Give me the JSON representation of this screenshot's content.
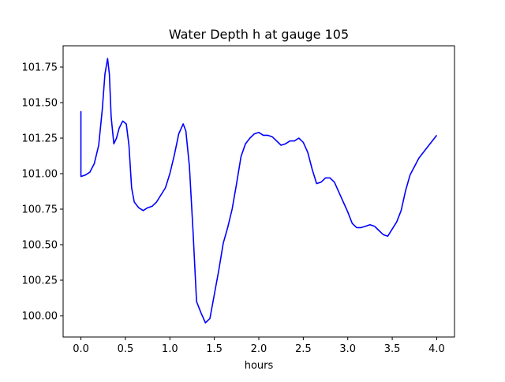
{
  "chart_data": {
    "type": "line",
    "title": "Water Depth h at gauge 105",
    "xlabel": "hours",
    "ylabel": "",
    "xlim": [
      -0.2,
      4.2
    ],
    "ylim": [
      99.85,
      101.9
    ],
    "xticks": [
      0.0,
      0.5,
      1.0,
      1.5,
      2.0,
      2.5,
      3.0,
      3.5,
      4.0
    ],
    "xtick_labels": [
      "0.0",
      "0.5",
      "1.0",
      "1.5",
      "2.0",
      "2.5",
      "3.0",
      "3.5",
      "4.0"
    ],
    "yticks": [
      100.0,
      100.25,
      100.5,
      100.75,
      101.0,
      101.25,
      101.5,
      101.75
    ],
    "ytick_labels": [
      "100.00",
      "100.25",
      "100.50",
      "100.75",
      "101.00",
      "101.25",
      "101.50",
      "101.75"
    ],
    "grid": false,
    "legend": "none",
    "series": [
      {
        "color": "#0000ff",
        "points": [
          [
            0.0,
            101.44
          ],
          [
            0.0,
            100.98
          ],
          [
            0.05,
            100.99
          ],
          [
            0.1,
            101.01
          ],
          [
            0.15,
            101.07
          ],
          [
            0.2,
            101.2
          ],
          [
            0.24,
            101.45
          ],
          [
            0.27,
            101.7
          ],
          [
            0.3,
            101.81
          ],
          [
            0.32,
            101.7
          ],
          [
            0.34,
            101.4
          ],
          [
            0.37,
            101.21
          ],
          [
            0.4,
            101.25
          ],
          [
            0.43,
            101.32
          ],
          [
            0.47,
            101.37
          ],
          [
            0.51,
            101.35
          ],
          [
            0.54,
            101.2
          ],
          [
            0.57,
            100.9
          ],
          [
            0.6,
            100.8
          ],
          [
            0.65,
            100.76
          ],
          [
            0.7,
            100.74
          ],
          [
            0.75,
            100.76
          ],
          [
            0.8,
            100.77
          ],
          [
            0.85,
            100.8
          ],
          [
            0.9,
            100.85
          ],
          [
            0.95,
            100.9
          ],
          [
            1.0,
            101.0
          ],
          [
            1.05,
            101.13
          ],
          [
            1.1,
            101.28
          ],
          [
            1.15,
            101.35
          ],
          [
            1.18,
            101.3
          ],
          [
            1.22,
            101.05
          ],
          [
            1.26,
            100.6
          ],
          [
            1.3,
            100.1
          ],
          [
            1.35,
            100.02
          ],
          [
            1.4,
            99.95
          ],
          [
            1.45,
            99.98
          ],
          [
            1.5,
            100.15
          ],
          [
            1.55,
            100.32
          ],
          [
            1.6,
            100.51
          ],
          [
            1.65,
            100.62
          ],
          [
            1.7,
            100.75
          ],
          [
            1.75,
            100.93
          ],
          [
            1.8,
            101.12
          ],
          [
            1.85,
            101.21
          ],
          [
            1.9,
            101.25
          ],
          [
            1.95,
            101.28
          ],
          [
            2.0,
            101.29
          ],
          [
            2.05,
            101.27
          ],
          [
            2.1,
            101.27
          ],
          [
            2.15,
            101.26
          ],
          [
            2.2,
            101.23
          ],
          [
            2.25,
            101.2
          ],
          [
            2.3,
            101.21
          ],
          [
            2.35,
            101.23
          ],
          [
            2.4,
            101.23
          ],
          [
            2.45,
            101.25
          ],
          [
            2.5,
            101.22
          ],
          [
            2.55,
            101.15
          ],
          [
            2.6,
            101.03
          ],
          [
            2.65,
            100.93
          ],
          [
            2.7,
            100.94
          ],
          [
            2.75,
            100.97
          ],
          [
            2.8,
            100.97
          ],
          [
            2.85,
            100.94
          ],
          [
            2.9,
            100.87
          ],
          [
            2.95,
            100.8
          ],
          [
            3.0,
            100.73
          ],
          [
            3.05,
            100.65
          ],
          [
            3.1,
            100.62
          ],
          [
            3.15,
            100.62
          ],
          [
            3.2,
            100.63
          ],
          [
            3.25,
            100.64
          ],
          [
            3.3,
            100.63
          ],
          [
            3.35,
            100.6
          ],
          [
            3.4,
            100.57
          ],
          [
            3.45,
            100.56
          ],
          [
            3.5,
            100.61
          ],
          [
            3.55,
            100.66
          ],
          [
            3.6,
            100.74
          ],
          [
            3.65,
            100.88
          ],
          [
            3.7,
            100.99
          ],
          [
            3.75,
            101.05
          ],
          [
            3.8,
            101.11
          ],
          [
            3.85,
            101.15
          ],
          [
            3.9,
            101.19
          ],
          [
            3.95,
            101.23
          ],
          [
            4.0,
            101.27
          ]
        ]
      }
    ]
  }
}
